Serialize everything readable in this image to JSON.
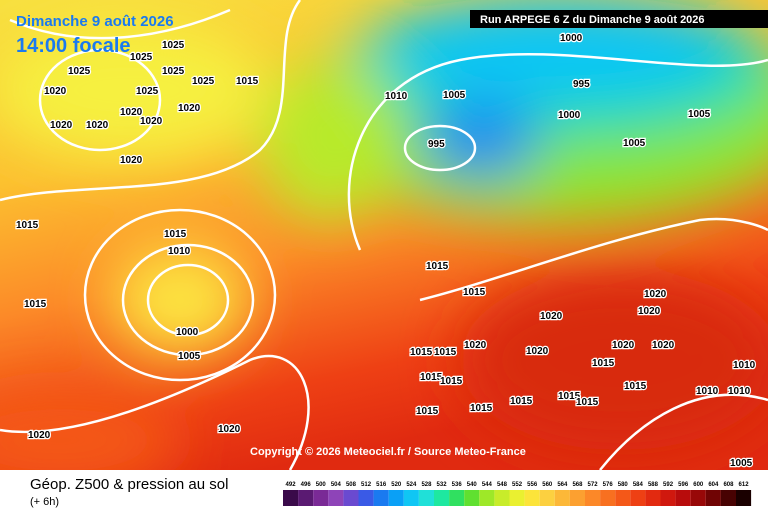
{
  "header": {
    "date": "Dimanche 9 août 2026",
    "time": "14:00 focale",
    "run": "Run ARPEGE 6 Z du Dimanche 9 août 2026"
  },
  "copyright": "Copyright © 2026 Meteociel.fr / Source Meteo-France",
  "legend": {
    "title": "Géop. Z500 & pression au sol",
    "step": "(+ 6h)",
    "labels": [
      492,
      496,
      500,
      504,
      508,
      512,
      516,
      520,
      524,
      528,
      532,
      536,
      540,
      544,
      548,
      552,
      556,
      560,
      564,
      568,
      572,
      576,
      580,
      584,
      588,
      592,
      596,
      600,
      604,
      608,
      612
    ],
    "colors": [
      "#3a0a4a",
      "#5a1a72",
      "#7a2a96",
      "#8e44b8",
      "#6a4ad0",
      "#3a5ae6",
      "#1a7af0",
      "#0aa0f6",
      "#10c6f4",
      "#20e0d8",
      "#1ee8a0",
      "#30e060",
      "#60e030",
      "#9ee828",
      "#c8ec2a",
      "#eaf030",
      "#fce43a",
      "#fcd040",
      "#fcb838",
      "#fca030",
      "#fc8828",
      "#f87020",
      "#f45818",
      "#ee4014",
      "#e22a10",
      "#d0180e",
      "#b80c0c",
      "#980808",
      "#700404",
      "#480202",
      "#1a0000"
    ]
  },
  "isobars": [
    1025,
    1025,
    1025,
    1025,
    1020,
    1025,
    1025,
    1015,
    1020,
    1020,
    1020,
    1020,
    1020,
    1020,
    1010,
    1005,
    1000,
    995,
    1000,
    995,
    1005,
    1005,
    1015,
    1015,
    1010,
    1015,
    1000,
    1005,
    1015,
    1015,
    1020,
    1020,
    1020,
    1020,
    1020,
    1015,
    1015,
    1020,
    1020,
    1015,
    1010,
    1015,
    1015,
    1015,
    1010,
    1010,
    1015,
    1015,
    1015,
    1015,
    1015,
    1020,
    1020,
    1005
  ]
}
